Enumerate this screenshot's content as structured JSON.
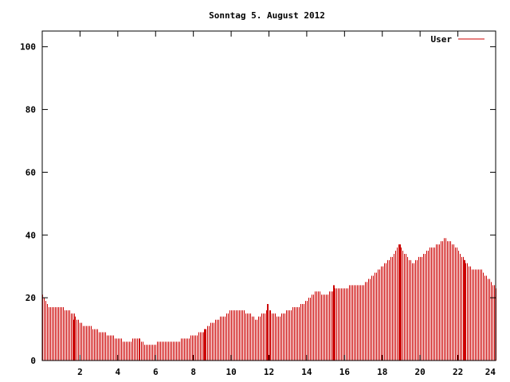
{
  "chart_data": {
    "type": "bar",
    "title": "Sonntag 5. August 2012",
    "xlabel": "",
    "ylabel": "",
    "xlim": [
      0,
      24
    ],
    "ylim": [
      0,
      105
    ],
    "x_ticks": [
      2,
      4,
      6,
      8,
      10,
      12,
      14,
      16,
      18,
      20,
      22,
      24
    ],
    "y_ticks": [
      0,
      20,
      40,
      60,
      80,
      100
    ],
    "grid": false,
    "legend_position": "top-right",
    "series": [
      {
        "name": "User",
        "color": "#cc0000",
        "knots": [
          [
            0.0,
            21
          ],
          [
            0.1,
            20
          ],
          [
            0.3,
            17
          ],
          [
            0.6,
            17
          ],
          [
            1.0,
            17
          ],
          [
            1.3,
            16
          ],
          [
            1.6,
            15
          ],
          [
            1.9,
            13
          ],
          [
            2.2,
            11
          ],
          [
            2.5,
            11
          ],
          [
            2.8,
            10
          ],
          [
            3.2,
            9
          ],
          [
            3.6,
            8
          ],
          [
            4.0,
            7
          ],
          [
            4.5,
            6
          ],
          [
            5.0,
            7
          ],
          [
            5.5,
            5
          ],
          [
            5.8,
            5
          ],
          [
            6.2,
            6
          ],
          [
            6.6,
            6
          ],
          [
            7.0,
            6
          ],
          [
            7.5,
            7
          ],
          [
            8.0,
            8
          ],
          [
            8.4,
            9
          ],
          [
            8.8,
            11
          ],
          [
            9.2,
            13
          ],
          [
            9.6,
            14
          ],
          [
            10.0,
            16
          ],
          [
            10.5,
            16
          ],
          [
            11.0,
            15
          ],
          [
            11.3,
            13
          ],
          [
            11.6,
            15
          ],
          [
            12.0,
            16
          ],
          [
            12.5,
            14
          ],
          [
            13.0,
            16
          ],
          [
            13.5,
            17
          ],
          [
            14.0,
            19
          ],
          [
            14.5,
            22
          ],
          [
            15.0,
            21
          ],
          [
            15.5,
            23
          ],
          [
            16.0,
            23
          ],
          [
            16.5,
            24
          ],
          [
            17.0,
            24
          ],
          [
            17.5,
            27
          ],
          [
            18.0,
            30
          ],
          [
            18.5,
            33
          ],
          [
            18.8,
            37
          ],
          [
            19.2,
            34
          ],
          [
            19.6,
            31
          ],
          [
            20.0,
            33
          ],
          [
            20.5,
            36
          ],
          [
            21.0,
            37
          ],
          [
            21.3,
            39
          ],
          [
            21.7,
            37
          ],
          [
            22.0,
            35
          ],
          [
            22.4,
            31
          ],
          [
            22.8,
            29
          ],
          [
            23.2,
            29
          ],
          [
            23.6,
            26
          ],
          [
            24.0,
            23
          ]
        ],
        "spikes": [
          [
            1.7,
            13
          ],
          [
            5.15,
            7
          ],
          [
            8.6,
            10
          ],
          [
            11.95,
            18
          ],
          [
            15.45,
            24
          ],
          [
            18.95,
            37
          ],
          [
            22.35,
            32
          ]
        ]
      }
    ]
  }
}
